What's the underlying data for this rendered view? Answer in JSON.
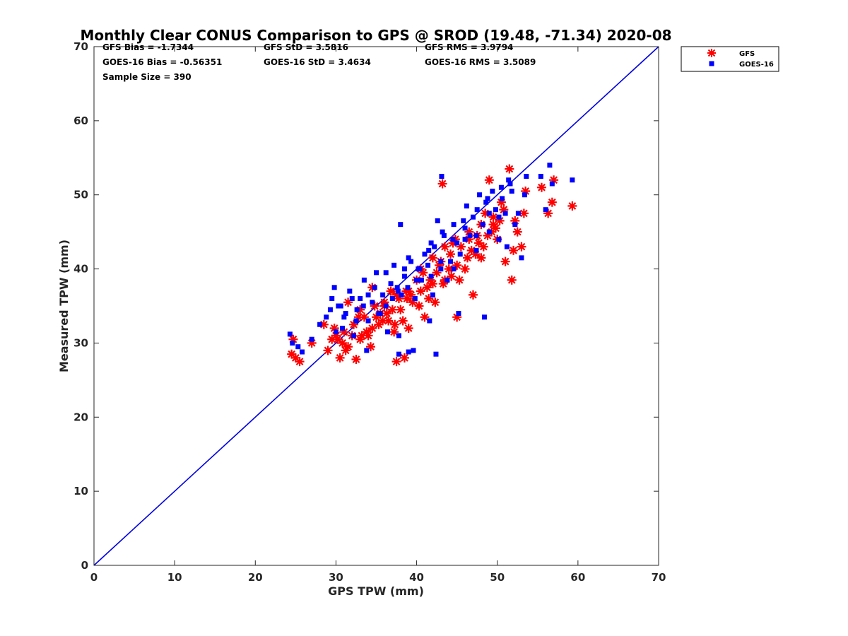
{
  "chart_data": {
    "type": "scatter",
    "title": "Monthly Clear CONUS Comparison to GPS @ SROD (19.48, -71.34) 2020-08",
    "xlabel": "GPS TPW (mm)",
    "ylabel": "Measured TPW (mm)",
    "xlim": [
      0,
      70
    ],
    "ylim": [
      0,
      70
    ],
    "xticks": [
      "0",
      "10",
      "20",
      "30",
      "40",
      "50",
      "60",
      "70"
    ],
    "yticks": [
      "0",
      "10",
      "20",
      "30",
      "40",
      "50",
      "60",
      "70"
    ],
    "stats": {
      "gfs_bias": "GFS Bias = -1.7344",
      "gfs_std": "GFS StD = 3.5816",
      "gfs_rms": "GFS RMS = 3.9794",
      "goes_bias": "GOES-16 Bias = -0.56351",
      "goes_std": "GOES-16 StD = 3.4634",
      "goes_rms": "GOES-16 RMS = 3.5089",
      "sample_size": "Sample Size = 390"
    },
    "legend": {
      "placement": "top-right outside",
      "entries": [
        "GFS",
        "GOES-16"
      ]
    },
    "reference_line": {
      "name": "1:1 line",
      "x": [
        0,
        70
      ],
      "y": [
        0,
        70
      ],
      "color": "#0000e0"
    },
    "series": [
      {
        "name": "GFS",
        "marker": "asterisk",
        "color": "#ff0000",
        "x": [
          24.5,
          24.7,
          25.0,
          25.5,
          27.0,
          28.5,
          29.0,
          29.5,
          30.0,
          30.5,
          31.0,
          31.5,
          32.0,
          32.5,
          33.0,
          33.5,
          34.0,
          34.5,
          35.0,
          35.5,
          36.0,
          36.5,
          37.0,
          37.5,
          37.8,
          38.0,
          38.5,
          39.0,
          39.5,
          40.0,
          40.5,
          41.0,
          41.5,
          42.0,
          42.5,
          43.0,
          43.2,
          43.5,
          44.0,
          44.5,
          45.0,
          45.5,
          46.0,
          46.5,
          47.0,
          47.5,
          48.0,
          48.5,
          49.0,
          49.5,
          50.0,
          50.5,
          51.0,
          51.5,
          51.8,
          52.0,
          52.5,
          53.0,
          53.3,
          53.5,
          55.5,
          56.3,
          56.8,
          57.0,
          59.3,
          29.8,
          30.2,
          31.2,
          32.2,
          33.2,
          34.3,
          35.3,
          36.3,
          37.3,
          38.3,
          39.3,
          40.3,
          41.3,
          42.3,
          43.3,
          44.3,
          45.3,
          46.3,
          47.3,
          48.3,
          49.3,
          50.3,
          31.5,
          33.0,
          34.5,
          36.0,
          37.5,
          39.0,
          40.5,
          42.0,
          43.5,
          45.0,
          46.5,
          48.0,
          49.5,
          32.8,
          34.8,
          36.8,
          38.8,
          40.8,
          42.8,
          44.8,
          46.8,
          48.8,
          50.8,
          30.8,
          33.8,
          35.8,
          37.2,
          38.7,
          41.7,
          44.2,
          47.7,
          49.8,
          52.2
        ],
        "y": [
          28.5,
          30.5,
          28.0,
          27.5,
          30.0,
          32.5,
          29.0,
          30.5,
          31.0,
          28.0,
          31.5,
          29.5,
          31.0,
          27.8,
          30.5,
          33.5,
          31.0,
          32.0,
          33.5,
          34.0,
          35.0,
          33.0,
          34.5,
          27.5,
          36.0,
          34.5,
          28.0,
          32.0,
          35.5,
          38.5,
          37.0,
          33.5,
          36.0,
          38.0,
          39.5,
          41.0,
          51.5,
          38.5,
          40.0,
          43.5,
          33.5,
          43.0,
          40.0,
          45.0,
          36.5,
          44.5,
          41.5,
          47.5,
          52.0,
          46.0,
          44.0,
          49.0,
          41.0,
          53.5,
          38.5,
          42.5,
          45.0,
          43.0,
          47.5,
          50.5,
          51.0,
          47.5,
          49.0,
          52.0,
          48.5,
          32.0,
          30.5,
          29.0,
          32.5,
          31.0,
          29.5,
          32.5,
          34.0,
          32.5,
          33.0,
          36.5,
          35.0,
          37.5,
          35.5,
          38.0,
          39.0,
          38.5,
          41.5,
          42.0,
          43.0,
          45.0,
          46.5,
          35.5,
          34.5,
          37.5,
          35.5,
          36.5,
          37.0,
          40.0,
          41.5,
          43.0,
          40.5,
          44.0,
          46.0,
          47.0,
          33.5,
          35.0,
          37.0,
          36.0,
          39.5,
          40.5,
          44.0,
          42.5,
          44.5,
          48.0,
          30.0,
          31.5,
          33.0,
          31.5,
          37.0,
          38.5,
          42.0,
          43.5,
          45.5,
          46.5
        ]
      },
      {
        "name": "GOES-16",
        "marker": "square",
        "color": "#0000ff",
        "x": [
          24.3,
          24.6,
          25.3,
          25.8,
          27.0,
          28.0,
          28.8,
          29.3,
          29.8,
          30.0,
          30.3,
          30.8,
          31.2,
          31.7,
          32.2,
          32.6,
          33.0,
          33.5,
          34.0,
          34.5,
          35.0,
          35.3,
          35.8,
          36.2,
          36.8,
          37.2,
          37.7,
          38.1,
          38.5,
          38.9,
          39.3,
          39.8,
          40.2,
          40.6,
          41.0,
          41.4,
          41.8,
          42.2,
          42.6,
          43.0,
          43.1,
          43.4,
          43.8,
          44.2,
          44.6,
          45.0,
          45.4,
          45.8,
          46.2,
          46.6,
          47.0,
          47.4,
          47.8,
          48.2,
          48.6,
          49.0,
          49.4,
          49.8,
          50.2,
          50.6,
          51.0,
          51.4,
          51.6,
          51.8,
          52.2,
          52.6,
          53.0,
          53.4,
          53.6,
          55.4,
          56.0,
          56.5,
          56.8,
          59.3,
          29.5,
          31.0,
          32.5,
          34.0,
          35.5,
          37.0,
          38.5,
          40.0,
          41.5,
          43.0,
          44.5,
          46.0,
          47.5,
          49.0,
          50.5,
          30.6,
          32.0,
          33.4,
          34.8,
          36.2,
          37.6,
          39.0,
          40.4,
          41.8,
          43.2,
          44.6,
          46.0,
          47.4,
          48.8,
          50.2,
          33.8,
          36.4,
          37.8,
          39.6,
          42.4,
          45.2,
          48.4,
          51.2,
          38.0,
          37.8,
          39.0,
          41.6,
          42.0
        ],
        "y": [
          31.2,
          30.0,
          29.5,
          28.8,
          30.5,
          32.5,
          33.5,
          34.5,
          37.5,
          31.5,
          35.0,
          32.0,
          34.0,
          37.0,
          31.0,
          34.5,
          36.0,
          38.5,
          33.0,
          35.5,
          39.5,
          34.0,
          36.5,
          35.0,
          38.0,
          40.5,
          37.0,
          36.5,
          39.0,
          37.5,
          41.0,
          36.0,
          40.0,
          38.5,
          42.0,
          40.5,
          39.0,
          43.0,
          46.5,
          40.0,
          52.5,
          44.5,
          38.5,
          41.0,
          46.0,
          43.5,
          42.0,
          46.5,
          48.5,
          44.5,
          47.0,
          42.5,
          50.0,
          46.0,
          49.0,
          45.0,
          50.5,
          48.0,
          44.0,
          49.5,
          47.5,
          52.0,
          51.5,
          50.5,
          46.0,
          47.5,
          41.5,
          50.0,
          52.5,
          52.5,
          48.0,
          54.0,
          51.5,
          52.0,
          36.0,
          33.5,
          33.0,
          36.5,
          34.0,
          36.0,
          40.0,
          38.5,
          42.5,
          41.0,
          44.0,
          45.5,
          48.0,
          47.5,
          51.0,
          35.0,
          36.0,
          35.0,
          37.5,
          39.5,
          37.5,
          41.5,
          40.0,
          43.5,
          45.0,
          40.0,
          44.0,
          44.5,
          49.5,
          47.0,
          29.0,
          31.5,
          31.0,
          29.0,
          28.5,
          34.0,
          33.5,
          43.0,
          46.0,
          28.5,
          28.8,
          33.0,
          36.5
        ]
      }
    ]
  }
}
